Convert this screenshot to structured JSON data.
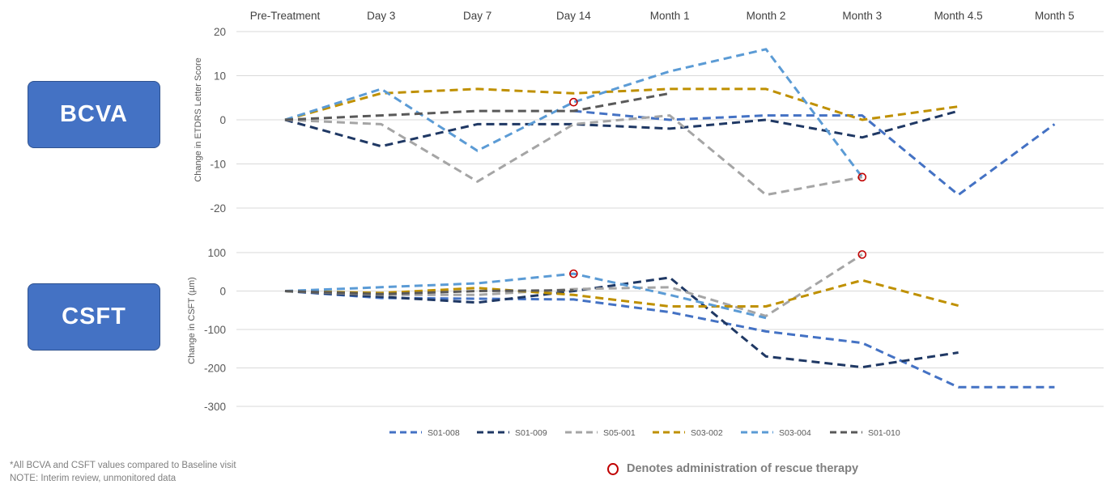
{
  "panels": {
    "top_label": "BCVA",
    "bottom_label": "CSFT"
  },
  "footnotes": {
    "line1": "*All BCVA and CSFT values compared to Baseline visit",
    "line2": "NOTE: Interim review, unmonitored data"
  },
  "rescue_note": {
    "text": "Denotes administration of rescue therapy",
    "marker_color": "#c00000"
  },
  "chart_data": [
    {
      "type": "line",
      "panel": "BCVA",
      "categories": [
        "Pre-Treatment",
        "Day 3",
        "Day 7",
        "Day 14",
        "Month 1",
        "Month 2",
        "Month 3",
        "Month 4.5",
        "Month 5"
      ],
      "ylabel": "Change in ETDRS Letter Score",
      "ylim": [
        -20,
        20
      ],
      "yticks": [
        20,
        10,
        0,
        -10,
        -20
      ],
      "grid": true,
      "series": [
        {
          "name": "S01-008",
          "color": "#4472c4",
          "values": [
            0,
            null,
            null,
            2,
            0,
            1,
            1,
            -17,
            -1
          ]
        },
        {
          "name": "S01-009",
          "color": "#1f3864",
          "values": [
            0,
            -6,
            -1,
            -1,
            -2,
            0,
            -4,
            2,
            null
          ]
        },
        {
          "name": "S05-001",
          "color": "#a5a5a5",
          "values": [
            0,
            -1,
            -14,
            -1,
            1,
            -17,
            -13,
            null,
            null
          ]
        },
        {
          "name": "S03-002",
          "color": "#bf9000",
          "values": [
            0,
            6,
            7,
            6,
            7,
            7,
            0,
            3,
            null
          ]
        },
        {
          "name": "S03-004",
          "color": "#5b9bd5",
          "values": [
            0,
            7,
            -7,
            4,
            11,
            16,
            -13,
            null,
            null
          ]
        },
        {
          "name": "S01-010",
          "color": "#595959",
          "values": [
            0,
            1,
            2,
            2,
            6,
            null,
            null,
            null,
            null
          ]
        }
      ],
      "rescue_markers": [
        {
          "series": "S03-004",
          "category": "Day 14",
          "value": 4
        },
        {
          "series": "S05-001",
          "category": "Month 3",
          "value": -13
        }
      ]
    },
    {
      "type": "line",
      "panel": "CSFT",
      "categories": [
        "Pre-Treatment",
        "Day 3",
        "Day 7",
        "Day 14",
        "Month 1",
        "Month 2",
        "Month 3",
        "Month 4.5",
        "Month 5"
      ],
      "ylabel": "Change in CSFT (µm)",
      "ylim": [
        -300,
        100
      ],
      "yticks": [
        100,
        0,
        -100,
        -200,
        -300
      ],
      "grid": true,
      "series": [
        {
          "name": "S01-008",
          "color": "#4472c4",
          "values": [
            0,
            -18,
            -20,
            -22,
            -55,
            -105,
            -135,
            -250,
            -250
          ]
        },
        {
          "name": "S01-009",
          "color": "#1f3864",
          "values": [
            0,
            -15,
            -30,
            0,
            35,
            -170,
            -198,
            -160,
            null
          ]
        },
        {
          "name": "S05-001",
          "color": "#a5a5a5",
          "values": [
            0,
            -10,
            -10,
            5,
            10,
            -65,
            95,
            null,
            null
          ]
        },
        {
          "name": "S03-002",
          "color": "#bf9000",
          "values": [
            0,
            -5,
            8,
            -10,
            -40,
            -40,
            28,
            -38,
            null
          ]
        },
        {
          "name": "S03-004",
          "color": "#5b9bd5",
          "values": [
            0,
            10,
            20,
            45,
            -10,
            -70,
            null,
            null,
            null
          ]
        },
        {
          "name": "S01-010",
          "color": "#595959",
          "values": [
            0,
            -8,
            0,
            2,
            null,
            null,
            null,
            null,
            null
          ]
        }
      ],
      "rescue_markers": [
        {
          "series": "S03-004",
          "category": "Day 14",
          "value": 45
        },
        {
          "series": "S05-001",
          "category": "Month 3",
          "value": 95
        }
      ]
    }
  ]
}
